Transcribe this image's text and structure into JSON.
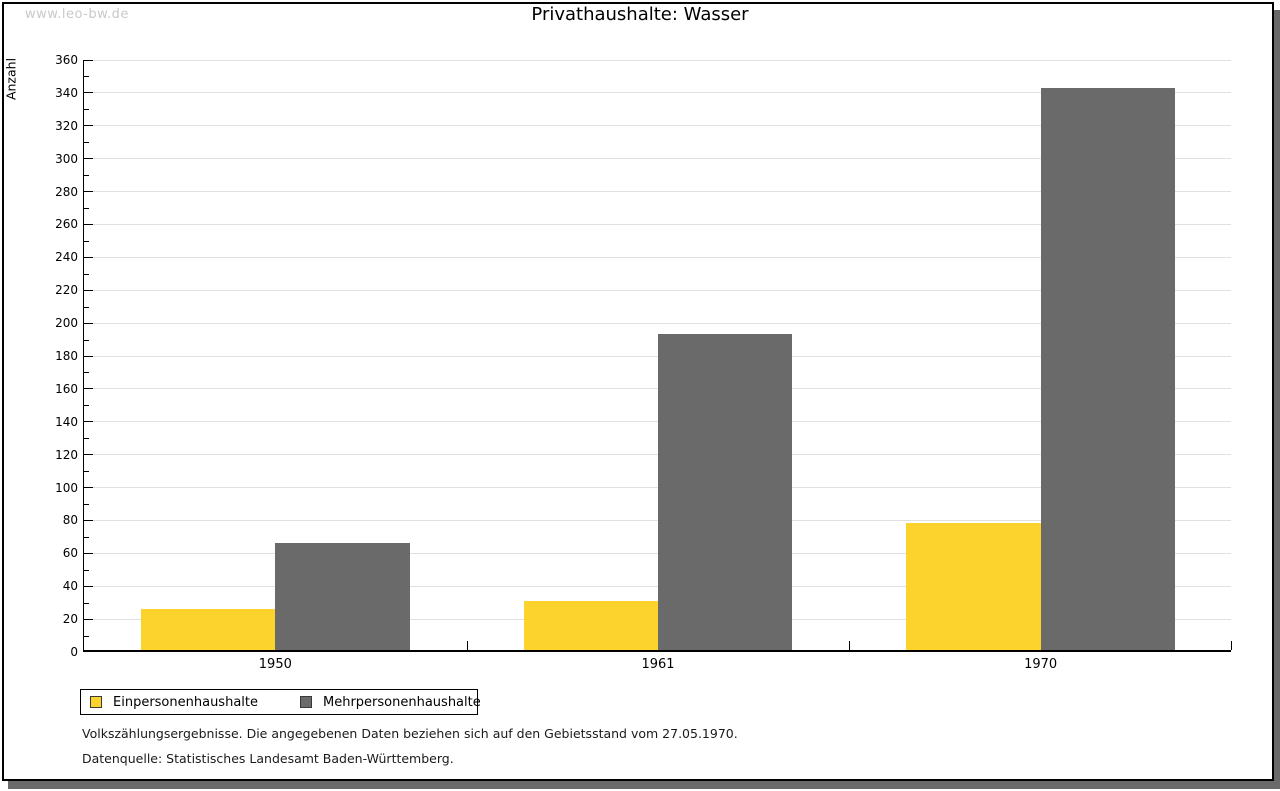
{
  "watermark": "www.leo-bw.de",
  "title": "Privathaushalte: Wasser",
  "chart_data": {
    "type": "bar",
    "title": "Privathaushalte: Wasser",
    "categories": [
      "1950",
      "1961",
      "1970"
    ],
    "series": [
      {
        "name": "Einpersonenhaushalte",
        "color": "#fcd32d",
        "values": [
          25,
          30,
          77
        ]
      },
      {
        "name": "Mehrpersonenhaushalte",
        "color": "#6a6a6a",
        "values": [
          65,
          192,
          342
        ]
      }
    ],
    "xlabel": "",
    "ylabel": "Anzahl",
    "ylim": [
      0,
      360
    ],
    "ytick_step": 20,
    "ytick_minor_step": 10,
    "ytick_labels": [
      "0",
      "20",
      "40",
      "60",
      "80",
      "100",
      "120",
      "140",
      "160",
      "180",
      "200",
      "220",
      "240",
      "260",
      "280",
      "300",
      "320",
      "340",
      "360"
    ],
    "grid": "horizontal-major",
    "gridline_color": "#e0e0e0",
    "bar_layout": "grouped-touching",
    "legend_position": "bottom-left"
  },
  "legend": {
    "items": [
      {
        "label": "Einpersonenhaushalte",
        "color": "#fcd32d"
      },
      {
        "label": "Mehrpersonenhaushalte",
        "color": "#6a6a6a"
      }
    ]
  },
  "footnotes": [
    "Volkszählungsergebnisse. Die angegebenen Daten beziehen sich auf den Gebietsstand vom 27.05.1970.",
    "Datenquelle: Statistisches Landesamt Baden-Württemberg."
  ],
  "frame": {
    "border_color": "#000000",
    "shadow_color": "#6a6a6a"
  }
}
